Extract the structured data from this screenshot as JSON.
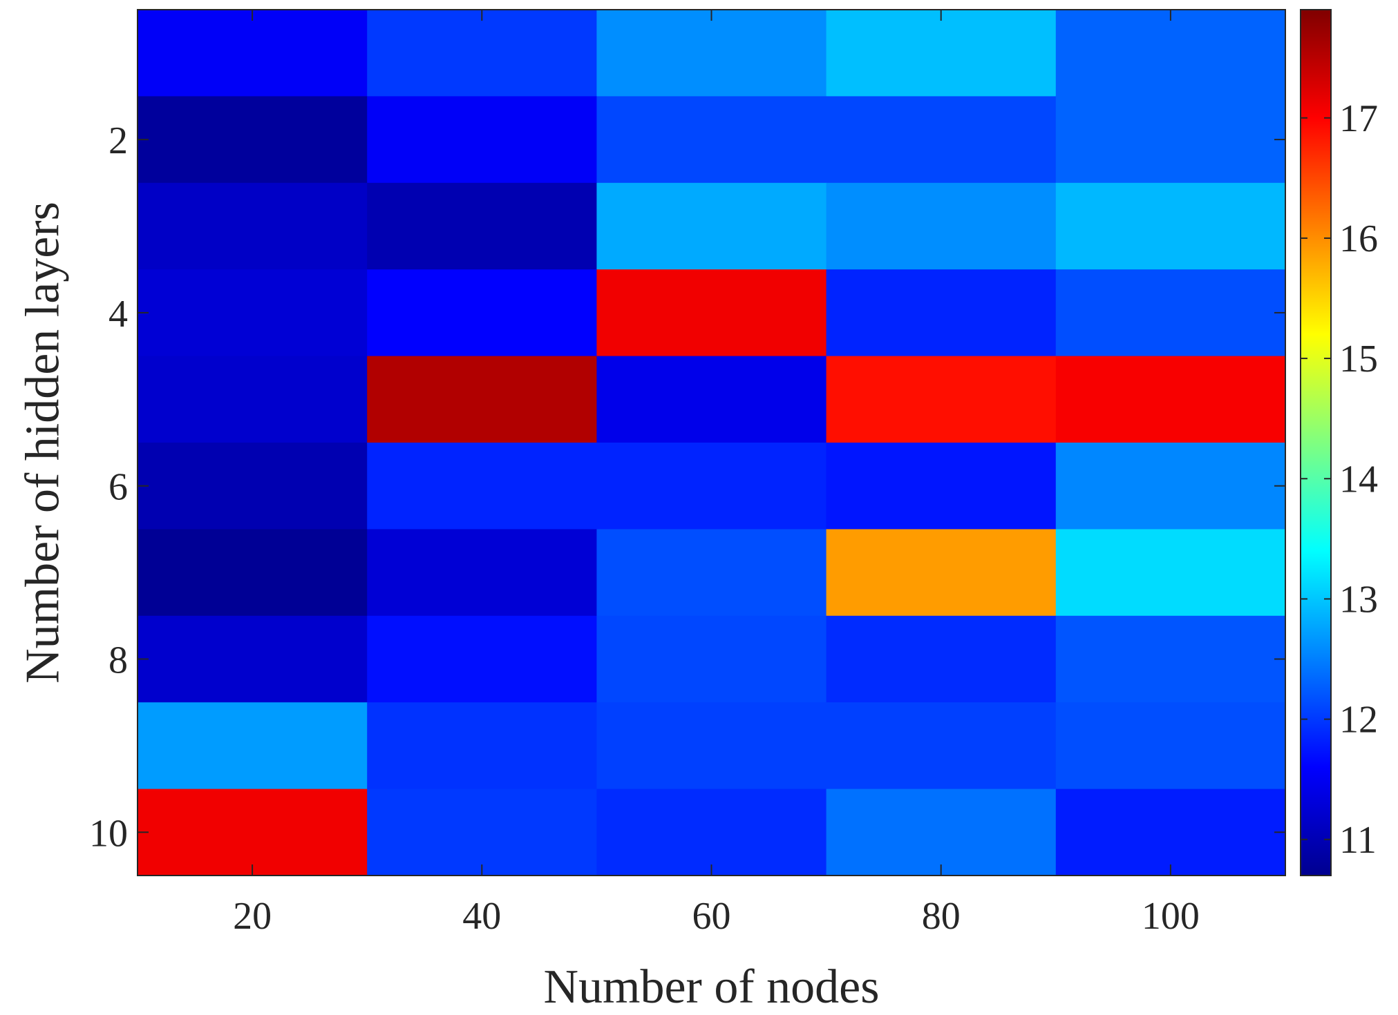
{
  "chart_data": {
    "type": "heatmap",
    "title": "",
    "xlabel": "Number of nodes",
    "ylabel": "Number of hidden layers",
    "x": [
      20,
      40,
      60,
      80,
      100
    ],
    "y": [
      1,
      2,
      3,
      4,
      5,
      6,
      7,
      8,
      9,
      10
    ],
    "x_tick_labels": [
      "20",
      "40",
      "60",
      "80",
      "100"
    ],
    "y_ticks": [
      2,
      4,
      6,
      8,
      10
    ],
    "y_tick_labels": [
      "2",
      "4",
      "6",
      "8",
      "10"
    ],
    "values": [
      [
        11.55,
        12.0,
        12.6,
        12.95,
        12.3
      ],
      [
        10.9,
        11.55,
        12.1,
        12.1,
        12.3
      ],
      [
        11.2,
        11.05,
        12.8,
        12.6,
        12.9
      ],
      [
        11.3,
        11.6,
        17.1,
        11.85,
        12.15
      ],
      [
        11.25,
        17.55,
        11.45,
        16.9,
        17.05
      ],
      [
        11.05,
        11.85,
        11.85,
        11.75,
        12.55
      ],
      [
        10.85,
        11.3,
        12.15,
        15.9,
        13.15
      ],
      [
        11.25,
        11.7,
        12.1,
        11.9,
        12.2
      ],
      [
        12.7,
        11.95,
        12.05,
        12.05,
        12.15
      ],
      [
        17.1,
        12.0,
        11.9,
        12.4,
        11.8
      ]
    ],
    "colorbar": {
      "colormap": "jet",
      "range": [
        10.7,
        17.9
      ],
      "ticks": [
        11,
        12,
        13,
        14,
        15,
        16,
        17
      ],
      "tick_labels": [
        "11",
        "12",
        "13",
        "14",
        "15",
        "16",
        "17"
      ]
    }
  }
}
